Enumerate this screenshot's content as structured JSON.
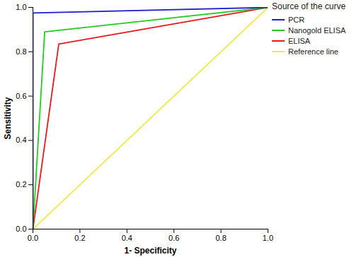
{
  "chart_data": {
    "type": "line",
    "x_label": "1- Specificity",
    "y_label": "Sensitivity",
    "legend": "right",
    "legend_title": "Source of the curve",
    "xlim": [
      0,
      1
    ],
    "ylim": [
      0,
      1
    ],
    "xticks": [
      {
        "value": 0,
        "label": "0.0"
      },
      {
        "value": 0.2,
        "label": "0.2"
      },
      {
        "value": 0.4,
        "label": "0.4"
      },
      {
        "value": 0.6,
        "label": "0.6"
      },
      {
        "value": 0.8,
        "label": "0.8"
      },
      {
        "value": 1,
        "label": "1.0"
      }
    ],
    "yticks": [
      {
        "value": 0,
        "label": "0.0"
      },
      {
        "value": 0.2,
        "label": "0.2"
      },
      {
        "value": 0.4,
        "label": "0.4"
      },
      {
        "value": 0.6,
        "label": "0.6"
      },
      {
        "value": 0.8,
        "label": "0.8"
      },
      {
        "value": 1,
        "label": "1.0"
      }
    ],
    "series": [
      {
        "name": "PCR",
        "color": "#1f1fd0",
        "x": [
          0,
          0,
          1
        ],
        "values": [
          0,
          0.975,
          1
        ]
      },
      {
        "name": "Nanogold ELISA",
        "color": "#22cc22",
        "x": [
          0,
          0.05,
          1
        ],
        "values": [
          0,
          0.89,
          1
        ]
      },
      {
        "name": "ELISA",
        "color": "#e8191f",
        "x": [
          0,
          0.11,
          1
        ],
        "values": [
          0,
          0.835,
          1
        ]
      },
      {
        "name": "Reference line",
        "color": "#f2e84a",
        "x": [
          0,
          1
        ],
        "values": [
          0,
          1
        ]
      }
    ]
  }
}
